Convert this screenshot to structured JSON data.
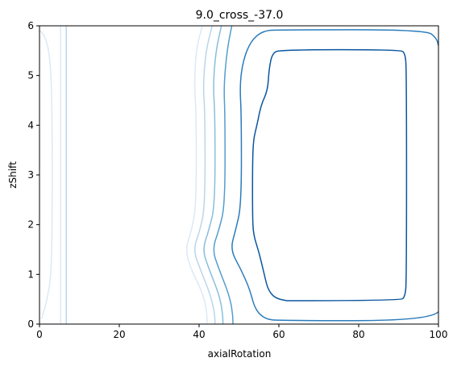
{
  "chart_data": {
    "type": "contour",
    "title": "9.0_cross_-37.0",
    "xlabel": "axialRotation",
    "ylabel": "zShift",
    "xlim": [
      0,
      100
    ],
    "ylim": [
      0,
      6
    ],
    "x_ticks": [
      "0",
      "20",
      "40",
      "60",
      "80",
      "100"
    ],
    "y_ticks": [
      "0",
      "1",
      "2",
      "3",
      "4",
      "5",
      "6"
    ],
    "grid": false,
    "colormap": "Blues",
    "contours": [
      {
        "level_index": 1,
        "color": "#dbe9f6",
        "paths": [
          [
            [
              0.5,
              0.1
            ],
            [
              2.5,
              0.6
            ],
            [
              3.2,
              1.5
            ],
            [
              3.2,
              4.5
            ],
            [
              2.5,
              5.5
            ],
            [
              1,
              5.85
            ],
            [
              0,
              5.9
            ]
          ],
          [
            [
              5.3,
              0
            ],
            [
              5.3,
              6
            ]
          ],
          [
            [
              42,
              0
            ],
            [
              42,
              0.3
            ],
            [
              40.5,
              0.7
            ],
            [
              38,
              1.1
            ],
            [
              36.5,
              1.5
            ],
            [
              38.2,
              1.9
            ],
            [
              39.3,
              2.4
            ],
            [
              39.3,
              4.2
            ],
            [
              38.8,
              4.8
            ],
            [
              39.2,
              5.5
            ],
            [
              40.8,
              6
            ]
          ]
        ]
      },
      {
        "level_index": 2,
        "color": "#bad6eb",
        "paths": [
          [
            [
              6.7,
              0
            ],
            [
              6.7,
              6
            ]
          ],
          [
            [
              44,
              0
            ],
            [
              44,
              0.2
            ],
            [
              42.8,
              0.6
            ],
            [
              40.3,
              1.1
            ],
            [
              38.5,
              1.5
            ],
            [
              40.3,
              1.9
            ],
            [
              41.5,
              2.4
            ],
            [
              41.5,
              4.2
            ],
            [
              41,
              4.8
            ],
            [
              41.7,
              5.5
            ],
            [
              43.3,
              6
            ]
          ]
        ]
      },
      {
        "level_index": 3,
        "color": "#89bedc",
        "paths": [
          [
            [
              46,
              0
            ],
            [
              46,
              0.2
            ],
            [
              45,
              0.6
            ],
            [
              42.5,
              1.1
            ],
            [
              40.8,
              1.5
            ],
            [
              42.5,
              1.9
            ],
            [
              44,
              2.4
            ],
            [
              44,
              4.2
            ],
            [
              43.5,
              4.8
            ],
            [
              44.2,
              5.5
            ],
            [
              45.6,
              6
            ]
          ]
        ]
      },
      {
        "level_index": 4,
        "color": "#539ecd",
        "paths": [
          [
            [
              48.5,
              0
            ],
            [
              48.5,
              0.2
            ],
            [
              47.5,
              0.6
            ],
            [
              45,
              1.1
            ],
            [
              43.3,
              1.5
            ],
            [
              45,
              1.9
            ],
            [
              46.5,
              2.4
            ],
            [
              46.5,
              4.2
            ],
            [
              46.2,
              4.8
            ],
            [
              47,
              5.5
            ],
            [
              48.2,
              6
            ]
          ]
        ]
      },
      {
        "level_index": 5,
        "color": "#2b7bba",
        "paths": [
          [
            [
              100,
              0.25
            ],
            [
              98,
              0.07
            ],
            [
              60,
              0.07
            ],
            [
              56.5,
              0.1
            ],
            [
              54,
              0.3
            ],
            [
              52.7,
              0.7
            ],
            [
              50.5,
              1.1
            ],
            [
              47.8,
              1.5
            ],
            [
              49.2,
              1.9
            ],
            [
              50.6,
              2.4
            ],
            [
              50.6,
              4.2
            ],
            [
              50.2,
              4.8
            ],
            [
              51,
              5.3
            ],
            [
              53,
              5.7
            ],
            [
              56,
              5.9
            ],
            [
              60,
              5.92
            ],
            [
              97,
              5.92
            ],
            [
              99.5,
              5.75
            ],
            [
              100,
              5.6
            ]
          ]
        ]
      },
      {
        "level_index": 6,
        "color": "#0b559f",
        "paths": [
          [
            [
              62,
              0.47
            ],
            [
              90.5,
              0.47
            ],
            [
              91.6,
              0.55
            ],
            [
              92,
              0.85
            ],
            [
              92,
              5.15
            ],
            [
              91.6,
              5.45
            ],
            [
              90.5,
              5.52
            ],
            [
              60.5,
              5.52
            ],
            [
              58.3,
              5.45
            ],
            [
              57.5,
              5.1
            ],
            [
              57.2,
              4.7
            ],
            [
              55.5,
              4.4
            ],
            [
              54.5,
              4
            ],
            [
              53.6,
              3.7
            ],
            [
              53.4,
              3.2
            ],
            [
              53.4,
              2.2
            ],
            [
              53.6,
              1.8
            ],
            [
              55,
              1.45
            ],
            [
              56.2,
              1.05
            ],
            [
              57.2,
              0.7
            ],
            [
              59,
              0.52
            ],
            [
              62,
              0.47
            ]
          ]
        ]
      }
    ]
  }
}
